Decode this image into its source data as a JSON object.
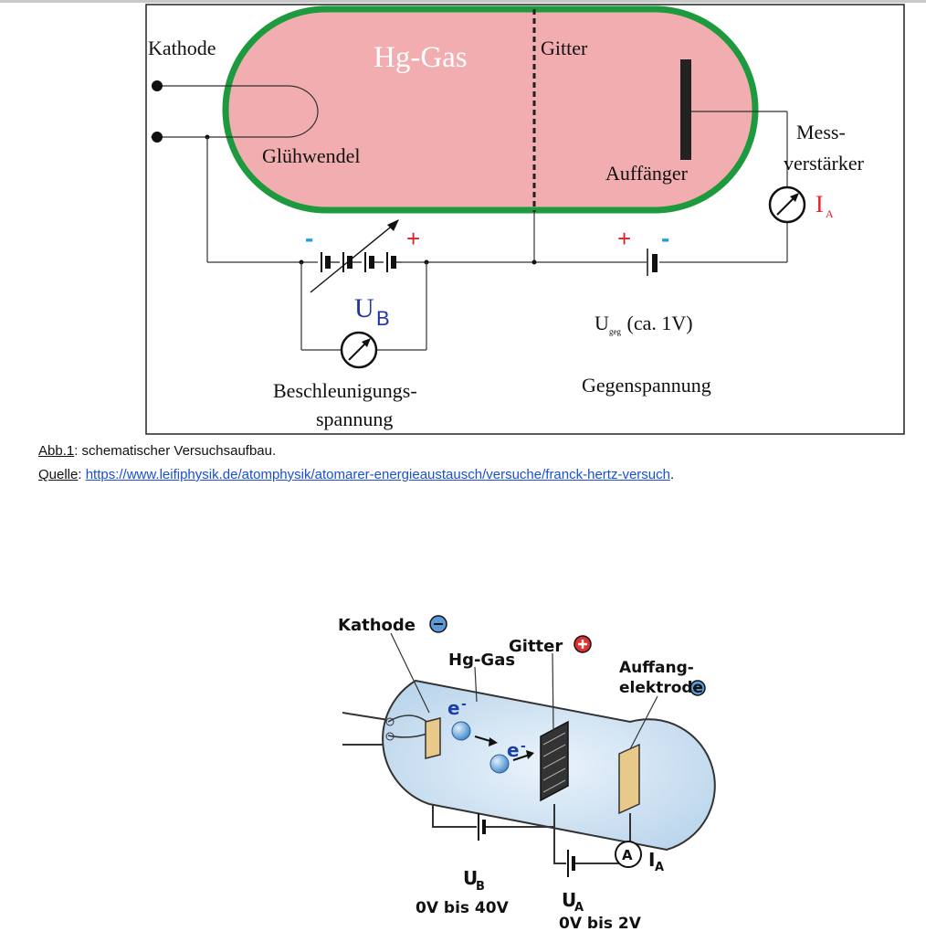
{
  "figure1": {
    "labels": {
      "kathode": "Kathode",
      "hg_gas": "Hg-Gas",
      "gitter": "Gitter",
      "mess_line1": "Mess-",
      "mess_line2": "verstärker",
      "gluehwendel": "Glühwendel",
      "auffaenger": "Auffänger",
      "ia_main": "I",
      "ia_sub": "A",
      "ub_main": "U",
      "ub_sub": "B",
      "ugeg_main": "U",
      "ugeg_sub": "geg",
      "ugeg_note": " (ca. 1V)",
      "beschl_line1": "Beschleunigungs-",
      "beschl_line2": "spannung",
      "gegen": "Gegenspannung",
      "minus": "-",
      "plus": "+"
    },
    "colors": {
      "tube_fill": "#f2adb0",
      "tube_border": "#1e9a3e",
      "red": "#e0202a",
      "blue": "#2233a8",
      "minus_blue": "#1aa0e0"
    }
  },
  "caption": {
    "abb_label": "Abb.1",
    "abb_text": ": schematischer Versuchsaufbau.",
    "quelle_label": "Quelle",
    "quelle_sep": ": ",
    "url": "https://www.leifiphysik.de/atomphysik/atomarer-energieaustausch/versuche/franck-hertz-versuch",
    "end": "."
  },
  "figure2": {
    "labels": {
      "kathode": "Kathode",
      "hg_gas": "Hg-Gas",
      "gitter": "Gitter",
      "auffang1": "Auffang-",
      "auffang2": "elektrode",
      "electron": "e",
      "ub": "U",
      "ub_sub": "B",
      "ub_range": "0V bis 40V",
      "ua": "U",
      "ua_sub": "A",
      "ua_range": "0V bis 2V",
      "ammeter": "A",
      "ia": "I",
      "ia_sub": "A",
      "minus": "−",
      "plus": "+"
    }
  }
}
